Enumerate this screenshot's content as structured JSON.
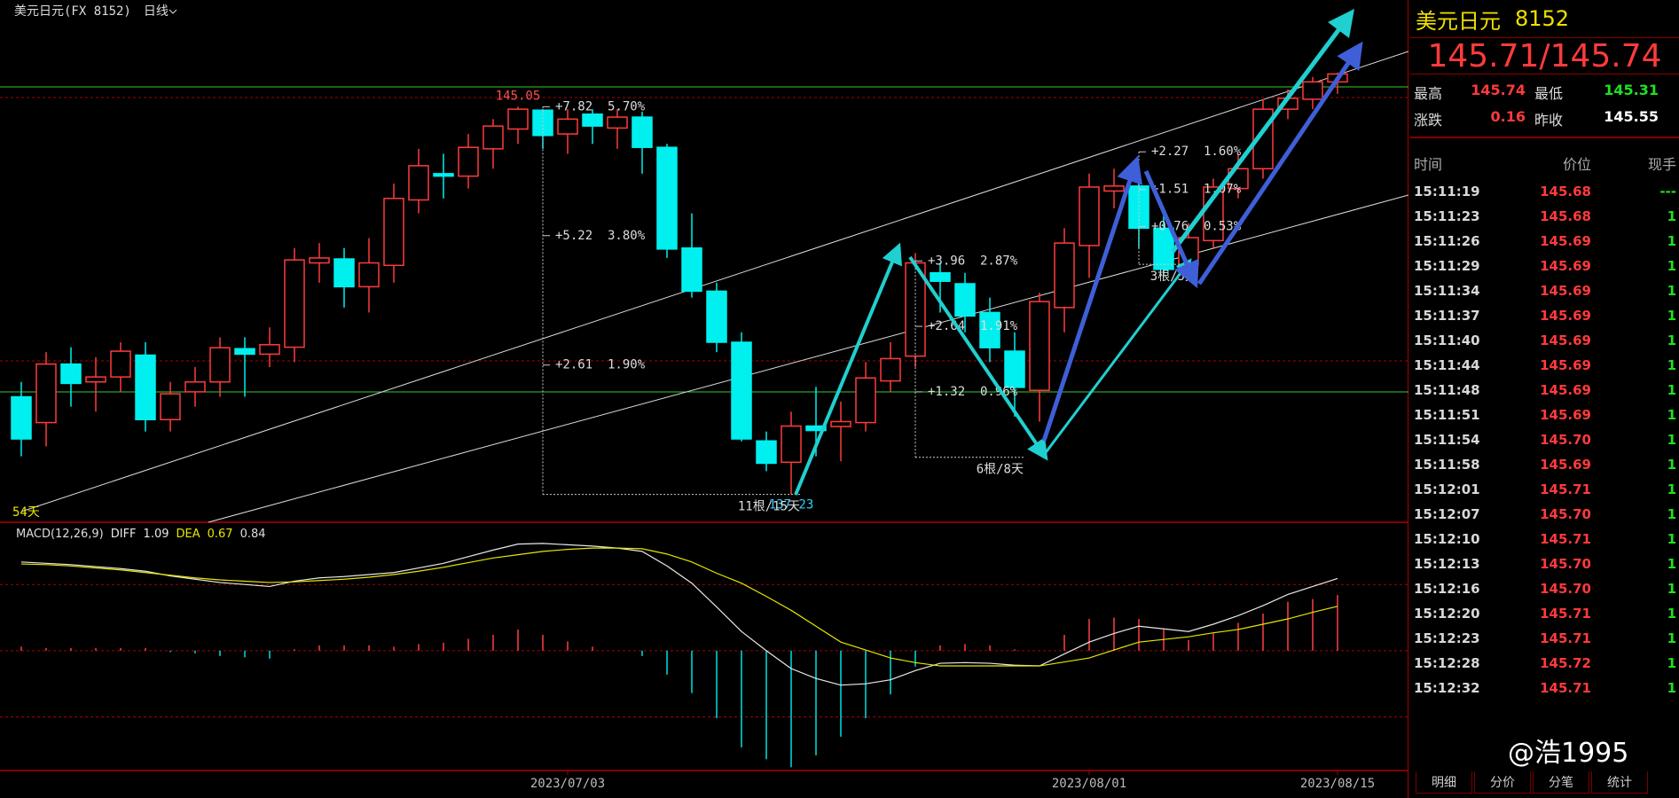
{
  "header": {
    "title": "美元日元(FX 8152)",
    "period": "日线"
  },
  "chart_data": [
    {
      "type": "candlestick",
      "categories": [
        null,
        null,
        null,
        null,
        null,
        null,
        null,
        null,
        null,
        null,
        null,
        null,
        null,
        null,
        null,
        null,
        null,
        null,
        null,
        null,
        null,
        null,
        "2023/07/03",
        null,
        null,
        null,
        null,
        null,
        null,
        null,
        null,
        null,
        null,
        null,
        null,
        null,
        null,
        null,
        null,
        null,
        null,
        null,
        null,
        "2023/08/01",
        null,
        null,
        null,
        null,
        null,
        null,
        null,
        null,
        null,
        "2023/08/15"
      ],
      "open": [
        139.2,
        138.68,
        139.86,
        139.5,
        139.6,
        140.04,
        138.74,
        139.3,
        139.5,
        140.17,
        140.06,
        140.2,
        141.9,
        141.98,
        141.42,
        141.85,
        143.17,
        143.7,
        143.65,
        144.2,
        144.6,
        144.98,
        144.5,
        144.9,
        144.62,
        144.84,
        144.23,
        142.2,
        141.33,
        140.3,
        138.31,
        137.88,
        138.61,
        138.6,
        138.68,
        139.52,
        140.02,
        141.7,
        141.48,
        140.9,
        140.12,
        139.33,
        141.0,
        142.25,
        143.35,
        143.45,
        142.6,
        141.87,
        142.35,
        143.4,
        143.8,
        145.0,
        145.2,
        145.55
      ],
      "high": [
        139.5,
        140.1,
        140.2,
        140.0,
        140.3,
        140.3,
        139.5,
        139.8,
        140.4,
        140.4,
        140.6,
        142.2,
        142.3,
        142.2,
        142.4,
        143.5,
        144.2,
        144.1,
        144.5,
        144.8,
        145.05,
        145.0,
        145.0,
        145.0,
        145.0,
        144.95,
        144.3,
        142.9,
        141.5,
        140.5,
        138.5,
        138.9,
        139.4,
        139.1,
        139.9,
        140.3,
        142.1,
        141.9,
        141.7,
        141.2,
        140.5,
        141.3,
        142.6,
        143.7,
        143.8,
        143.6,
        142.9,
        142.7,
        143.6,
        144.1,
        145.2,
        145.4,
        145.65,
        145.74
      ],
      "low": [
        138.0,
        138.2,
        139.0,
        138.9,
        139.3,
        138.5,
        138.5,
        139.0,
        139.2,
        139.2,
        139.8,
        139.9,
        141.5,
        141.0,
        140.9,
        141.5,
        142.9,
        143.2,
        143.4,
        143.8,
        144.3,
        144.2,
        144.1,
        144.3,
        144.2,
        143.7,
        142.0,
        141.2,
        140.1,
        138.3,
        137.7,
        137.23,
        138.0,
        137.9,
        138.5,
        139.3,
        139.8,
        140.9,
        140.5,
        139.9,
        138.8,
        138.7,
        140.5,
        141.6,
        143.0,
        142.2,
        141.6,
        141.7,
        142.2,
        143.2,
        143.6,
        144.8,
        145.0,
        145.31
      ],
      "close": [
        138.35,
        139.86,
        139.47,
        139.6,
        140.12,
        138.74,
        139.26,
        139.5,
        140.19,
        140.06,
        140.25,
        141.96,
        142.0,
        141.42,
        141.9,
        143.2,
        143.86,
        143.65,
        144.23,
        144.66,
        145.0,
        144.47,
        144.8,
        144.66,
        144.84,
        144.23,
        142.18,
        141.33,
        140.3,
        138.35,
        137.86,
        138.61,
        138.52,
        138.7,
        139.58,
        139.97,
        141.9,
        141.53,
        140.83,
        140.19,
        139.39,
        141.12,
        142.3,
        143.43,
        143.45,
        142.6,
        141.77,
        142.41,
        143.43,
        143.8,
        145.0,
        145.22,
        145.55,
        145.71
      ],
      "up_color": "#ff3b3b",
      "down_color": "#00f0f0",
      "ylim": [
        136.67,
        146.88
      ],
      "price_labels": [
        {
          "index": 20,
          "kind": "high"
        },
        {
          "index": 31,
          "kind": "low"
        }
      ],
      "count_label": "54天",
      "measures": [
        {
          "start": 21,
          "end": 31,
          "low": 137.23,
          "levels": [
            {
              "price": 145.05,
              "label": "+7.82  5.70%"
            },
            {
              "price": 142.45,
              "label": "+5.22  3.80%"
            },
            {
              "price": 139.84,
              "label": "+2.61  1.90%"
            }
          ],
          "span_label": "11根/15天"
        },
        {
          "start": 36,
          "end": 40,
          "low": 137.98,
          "levels": [
            {
              "price": 141.94,
              "label": "+3.96  2.87%"
            },
            {
              "price": 140.62,
              "label": "+2.64  1.91%"
            },
            {
              "price": 139.3,
              "label": "+1.32  0.96%"
            }
          ],
          "span_label": "6根/8天"
        },
        {
          "start": 45,
          "end": 47,
          "low": 141.87,
          "levels": [
            {
              "price": 144.14,
              "label": "+2.27  1.60%"
            },
            {
              "price": 143.38,
              "label": "+1.51  1.07%"
            },
            {
              "price": 142.63,
              "label": "+0.76  0.53%"
            }
          ],
          "span_label": "3根/5天"
        }
      ]
    },
    {
      "type": "macd",
      "label": "MACD(12,26,9)",
      "series": [
        {
          "name": "DIFF",
          "color": "#e8e8e8",
          "values": [
            1.34,
            1.32,
            1.3,
            1.27,
            1.24,
            1.2,
            1.13,
            1.08,
            1.03,
            1.0,
            0.97,
            1.05,
            1.1,
            1.12,
            1.15,
            1.18,
            1.25,
            1.32,
            1.42,
            1.52,
            1.61,
            1.62,
            1.6,
            1.58,
            1.55,
            1.5,
            1.28,
            1.02,
            0.66,
            0.29,
            0.0,
            -0.27,
            -0.42,
            -0.52,
            -0.5,
            -0.44,
            -0.3,
            -0.19,
            -0.18,
            -0.19,
            -0.22,
            -0.23,
            -0.05,
            0.13,
            0.26,
            0.37,
            0.33,
            0.29,
            0.4,
            0.53,
            0.68,
            0.85,
            0.97,
            1.09
          ]
        },
        {
          "name": "DEA",
          "color": "#e6e600",
          "values": [
            1.31,
            1.3,
            1.28,
            1.25,
            1.22,
            1.18,
            1.14,
            1.1,
            1.07,
            1.05,
            1.03,
            1.04,
            1.06,
            1.08,
            1.11,
            1.15,
            1.2,
            1.26,
            1.33,
            1.4,
            1.45,
            1.5,
            1.53,
            1.55,
            1.55,
            1.54,
            1.46,
            1.34,
            1.17,
            1.02,
            0.82,
            0.61,
            0.37,
            0.13,
            0.01,
            -0.11,
            -0.18,
            -0.23,
            -0.23,
            -0.23,
            -0.23,
            -0.23,
            -0.17,
            -0.11,
            0.01,
            0.13,
            0.17,
            0.21,
            0.27,
            0.32,
            0.4,
            0.48,
            0.58,
            0.67
          ]
        }
      ],
      "histogram": {
        "up_color": "#ff4040",
        "down_color": "#00e0e0",
        "values": [
          0.06,
          0.04,
          0.04,
          0.04,
          0.04,
          0.04,
          -0.02,
          -0.04,
          -0.08,
          -0.1,
          -0.12,
          0.02,
          0.08,
          0.08,
          0.08,
          0.06,
          0.1,
          0.12,
          0.18,
          0.24,
          0.32,
          0.24,
          0.14,
          0.06,
          0.0,
          -0.08,
          -0.36,
          -0.64,
          -1.02,
          -1.46,
          -1.64,
          -1.76,
          -1.58,
          -1.3,
          -1.02,
          -0.66,
          -0.24,
          0.08,
          0.1,
          0.08,
          0.02,
          0.0,
          0.24,
          0.48,
          0.5,
          0.48,
          0.32,
          0.16,
          0.26,
          0.42,
          0.56,
          0.74,
          0.78,
          0.84
        ]
      },
      "ylim": [
        -1.81,
        1.9
      ],
      "ref_levels": [
        -1,
        0,
        1
      ]
    }
  ],
  "quote": {
    "name": "美元日元",
    "code": "8152",
    "price": "145.71/145.74",
    "stats": [
      {
        "label": "最高",
        "value": "145.74"
      },
      {
        "label": "最低",
        "value": "145.31"
      },
      {
        "label": "涨跌",
        "value": "0.16"
      },
      {
        "label": "昨收",
        "value": "145.55"
      }
    ]
  },
  "trades": {
    "headers": [
      "时间",
      "价位",
      "现手"
    ],
    "rows": [
      [
        "15:11:19",
        "145.68",
        "---"
      ],
      [
        "15:11:23",
        "145.68",
        "1"
      ],
      [
        "15:11:26",
        "145.69",
        "1"
      ],
      [
        "15:11:29",
        "145.69",
        "1"
      ],
      [
        "15:11:34",
        "145.69",
        "1"
      ],
      [
        "15:11:37",
        "145.69",
        "1"
      ],
      [
        "15:11:40",
        "145.69",
        "1"
      ],
      [
        "15:11:44",
        "145.69",
        "1"
      ],
      [
        "15:11:48",
        "145.69",
        "1"
      ],
      [
        "15:11:51",
        "145.69",
        "1"
      ],
      [
        "15:11:54",
        "145.70",
        "1"
      ],
      [
        "15:11:58",
        "145.69",
        "1"
      ],
      [
        "15:12:01",
        "145.71",
        "1"
      ],
      [
        "15:12:07",
        "145.70",
        "1"
      ],
      [
        "15:12:10",
        "145.71",
        "1"
      ],
      [
        "15:12:13",
        "145.70",
        "1"
      ],
      [
        "15:12:16",
        "145.70",
        "1"
      ],
      [
        "15:12:20",
        "145.71",
        "1"
      ],
      [
        "15:12:23",
        "145.71",
        "1"
      ],
      [
        "15:12:28",
        "145.72",
        "1"
      ],
      [
        "15:12:32",
        "145.71",
        "1"
      ]
    ]
  },
  "tabs": [
    "明细",
    "分价",
    "分笔",
    "统计"
  ],
  "watermark": "@浩1995"
}
